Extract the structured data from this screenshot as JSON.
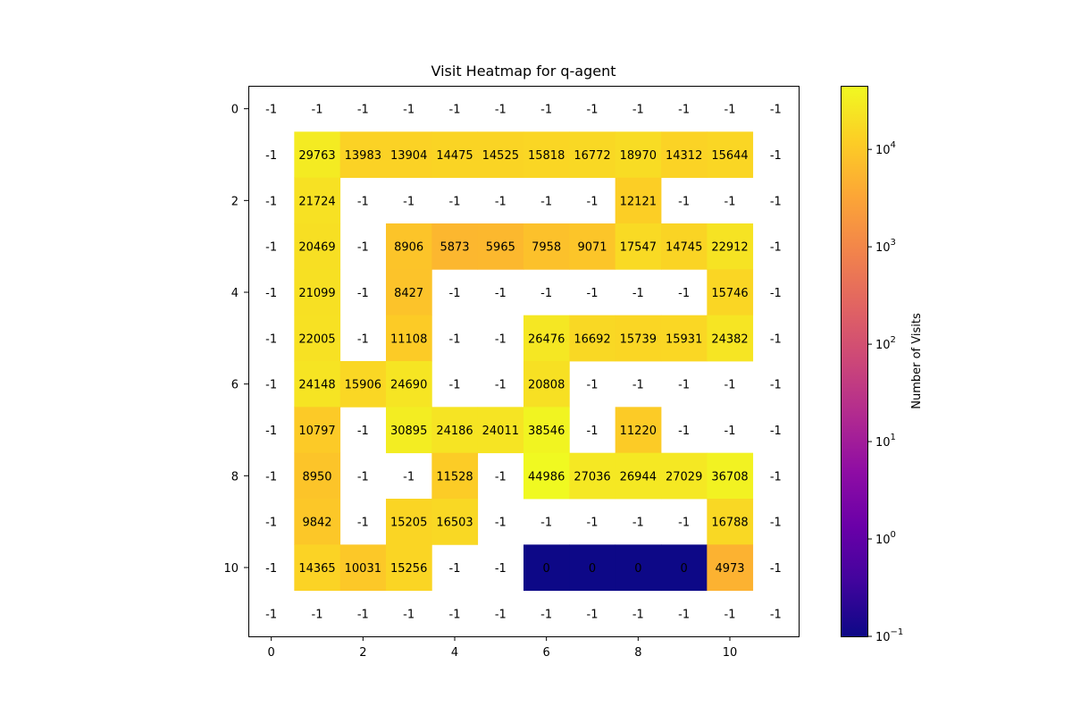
{
  "chart_data": {
    "type": "heatmap",
    "title": "Visit Heatmap for q-agent",
    "xlabel": "",
    "ylabel": "",
    "rows": 12,
    "cols": 12,
    "x_ticks": [
      0,
      2,
      4,
      6,
      8,
      10
    ],
    "y_ticks": [
      0,
      2,
      4,
      6,
      8,
      10
    ],
    "colorscale": "plasma",
    "color_scale_type": "log",
    "color_range": [
      0.1,
      44986
    ],
    "colorbar_label": "Number of Visits",
    "colorbar_ticks": [
      {
        "base": "10",
        "exp": "−1",
        "value": 0.1
      },
      {
        "base": "10",
        "exp": "0",
        "value": 1
      },
      {
        "base": "10",
        "exp": "1",
        "value": 10
      },
      {
        "base": "10",
        "exp": "2",
        "value": 100
      },
      {
        "base": "10",
        "exp": "3",
        "value": 1000
      },
      {
        "base": "10",
        "exp": "4",
        "value": 10000
      }
    ],
    "wall_color": "#ffffff",
    "values": [
      [
        -1,
        -1,
        -1,
        -1,
        -1,
        -1,
        -1,
        -1,
        -1,
        -1,
        -1,
        -1
      ],
      [
        -1,
        29763,
        13983,
        13904,
        14475,
        14525,
        15818,
        16772,
        18970,
        14312,
        15644,
        -1
      ],
      [
        -1,
        21724,
        -1,
        -1,
        -1,
        -1,
        -1,
        -1,
        12121,
        -1,
        -1,
        -1
      ],
      [
        -1,
        20469,
        -1,
        8906,
        5873,
        5965,
        7958,
        9071,
        17547,
        14745,
        22912,
        -1
      ],
      [
        -1,
        21099,
        -1,
        8427,
        -1,
        -1,
        -1,
        -1,
        -1,
        -1,
        15746,
        -1
      ],
      [
        -1,
        22005,
        -1,
        11108,
        -1,
        -1,
        26476,
        16692,
        15739,
        15931,
        24382,
        -1
      ],
      [
        -1,
        24148,
        15906,
        24690,
        -1,
        -1,
        20808,
        -1,
        -1,
        -1,
        -1,
        -1
      ],
      [
        -1,
        10797,
        -1,
        30895,
        24186,
        24011,
        38546,
        -1,
        11220,
        -1,
        -1,
        -1
      ],
      [
        -1,
        8950,
        -1,
        -1,
        11528,
        -1,
        44986,
        27036,
        26944,
        27029,
        36708,
        -1
      ],
      [
        -1,
        9842,
        -1,
        15205,
        16503,
        -1,
        -1,
        -1,
        -1,
        -1,
        16788,
        -1
      ],
      [
        -1,
        14365,
        10031,
        15256,
        -1,
        -1,
        0,
        0,
        0,
        0,
        4973,
        -1
      ],
      [
        -1,
        -1,
        -1,
        -1,
        -1,
        -1,
        -1,
        -1,
        -1,
        -1,
        -1,
        -1
      ]
    ]
  }
}
